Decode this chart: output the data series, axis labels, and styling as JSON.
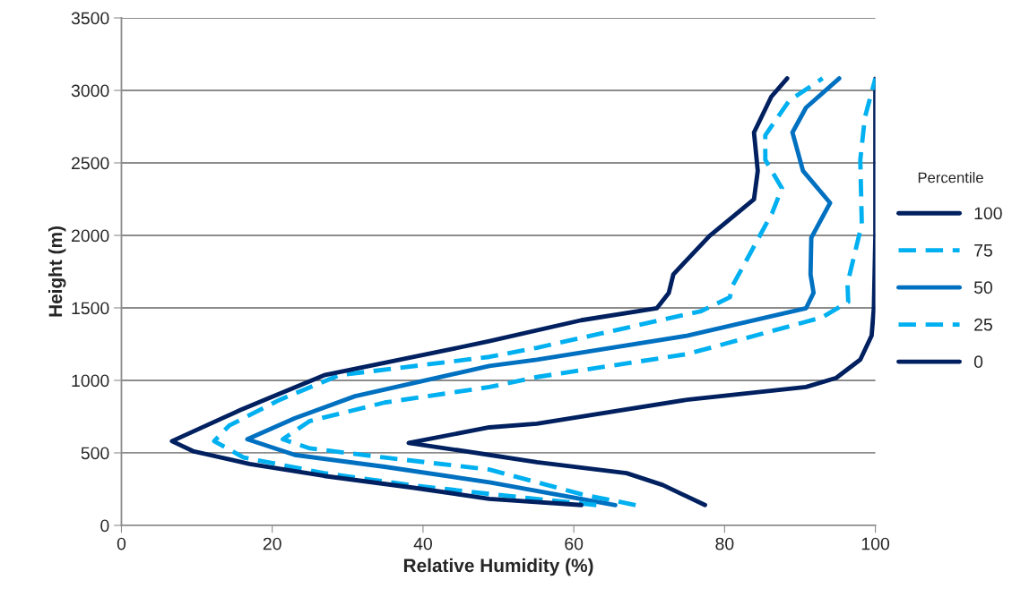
{
  "chart_data": {
    "type": "line",
    "xlabel": "Relative Humidity (%)",
    "ylabel": "Height (m)",
    "legend_title": "Percentile",
    "legend": "right",
    "grid": "y",
    "xlim": [
      0,
      100
    ],
    "xticks": [
      0,
      20,
      40,
      60,
      80,
      100
    ],
    "ylim": [
      0,
      3500
    ],
    "yticks": [
      0,
      500,
      1000,
      1500,
      2000,
      2500,
      3000,
      3500
    ],
    "series": [
      {
        "name": "100",
        "color": "#002060",
        "line_style": "solid",
        "x": [
          77.4,
          71.8,
          67,
          55.1,
          48.8,
          38.1,
          48.8,
          55.1,
          75,
          90.8,
          94.8,
          98,
          99.5,
          99.8,
          100,
          100,
          100
        ],
        "values": [
          140,
          278,
          360,
          436,
          486,
          569,
          676,
          701,
          866,
          954,
          1017,
          1143,
          1308,
          1500,
          2000,
          2500,
          3080
        ]
      },
      {
        "name": "75",
        "color": "#00b0f0",
        "line_style": "dashed",
        "x": [
          68.2,
          61,
          48.8,
          34.9,
          25,
          21.4,
          25,
          34.9,
          48.8,
          55.1,
          75,
          92.9,
          96.4,
          96.3,
          98.2,
          98,
          98.6,
          100
        ],
        "values": [
          140,
          215,
          385,
          468,
          531,
          594,
          720,
          847,
          954,
          1023,
          1181,
          1434,
          1541,
          1668,
          2078,
          2521,
          2811,
          3083
        ]
      },
      {
        "name": "50",
        "color": "#0070c0",
        "line_style": "solid",
        "x": [
          65.5,
          48.8,
          34.9,
          23,
          16.7,
          23,
          31,
          48.8,
          55.1,
          75,
          90.8,
          91.8,
          91.4,
          91.5,
          94,
          90.4,
          89,
          90.8,
          95.2
        ],
        "values": [
          140,
          297,
          404,
          486,
          594,
          739,
          891,
          1099,
          1143,
          1308,
          1497,
          1604,
          1731,
          1984,
          2224,
          2445,
          2710,
          2881,
          3083
        ]
      },
      {
        "name": "25",
        "color": "#00b0f0",
        "line_style": "dashed",
        "x": [
          63,
          50,
          38.8,
          26.9,
          16.2,
          12.3,
          14.3,
          21,
          28.9,
          48.8,
          55.1,
          76.9,
          80.7,
          81,
          83,
          86.3,
          87.6,
          85.4,
          85.4,
          88.6,
          93
        ],
        "values": [
          140,
          210,
          275,
          360,
          468,
          581,
          689,
          866,
          1036,
          1162,
          1225,
          1478,
          1573,
          1648,
          1838,
          2154,
          2325,
          2521,
          2691,
          2931,
          3083
        ]
      },
      {
        "name": "0",
        "color": "#002060",
        "line_style": "solid",
        "x": [
          61,
          48.8,
          38.8,
          26.9,
          17,
          9.5,
          6.7,
          15.8,
          19,
          26.9,
          38.8,
          48.8,
          61,
          71,
          72.6,
          73.2,
          78,
          83.9,
          84.4,
          83.9,
          86.2,
          88.3
        ],
        "values": [
          140,
          183,
          259,
          341,
          423,
          512,
          581,
          796,
          866,
          1036,
          1162,
          1270,
          1415,
          1497,
          1604,
          1731,
          1996,
          2249,
          2445,
          2710,
          2957,
          3083
        ]
      }
    ]
  }
}
